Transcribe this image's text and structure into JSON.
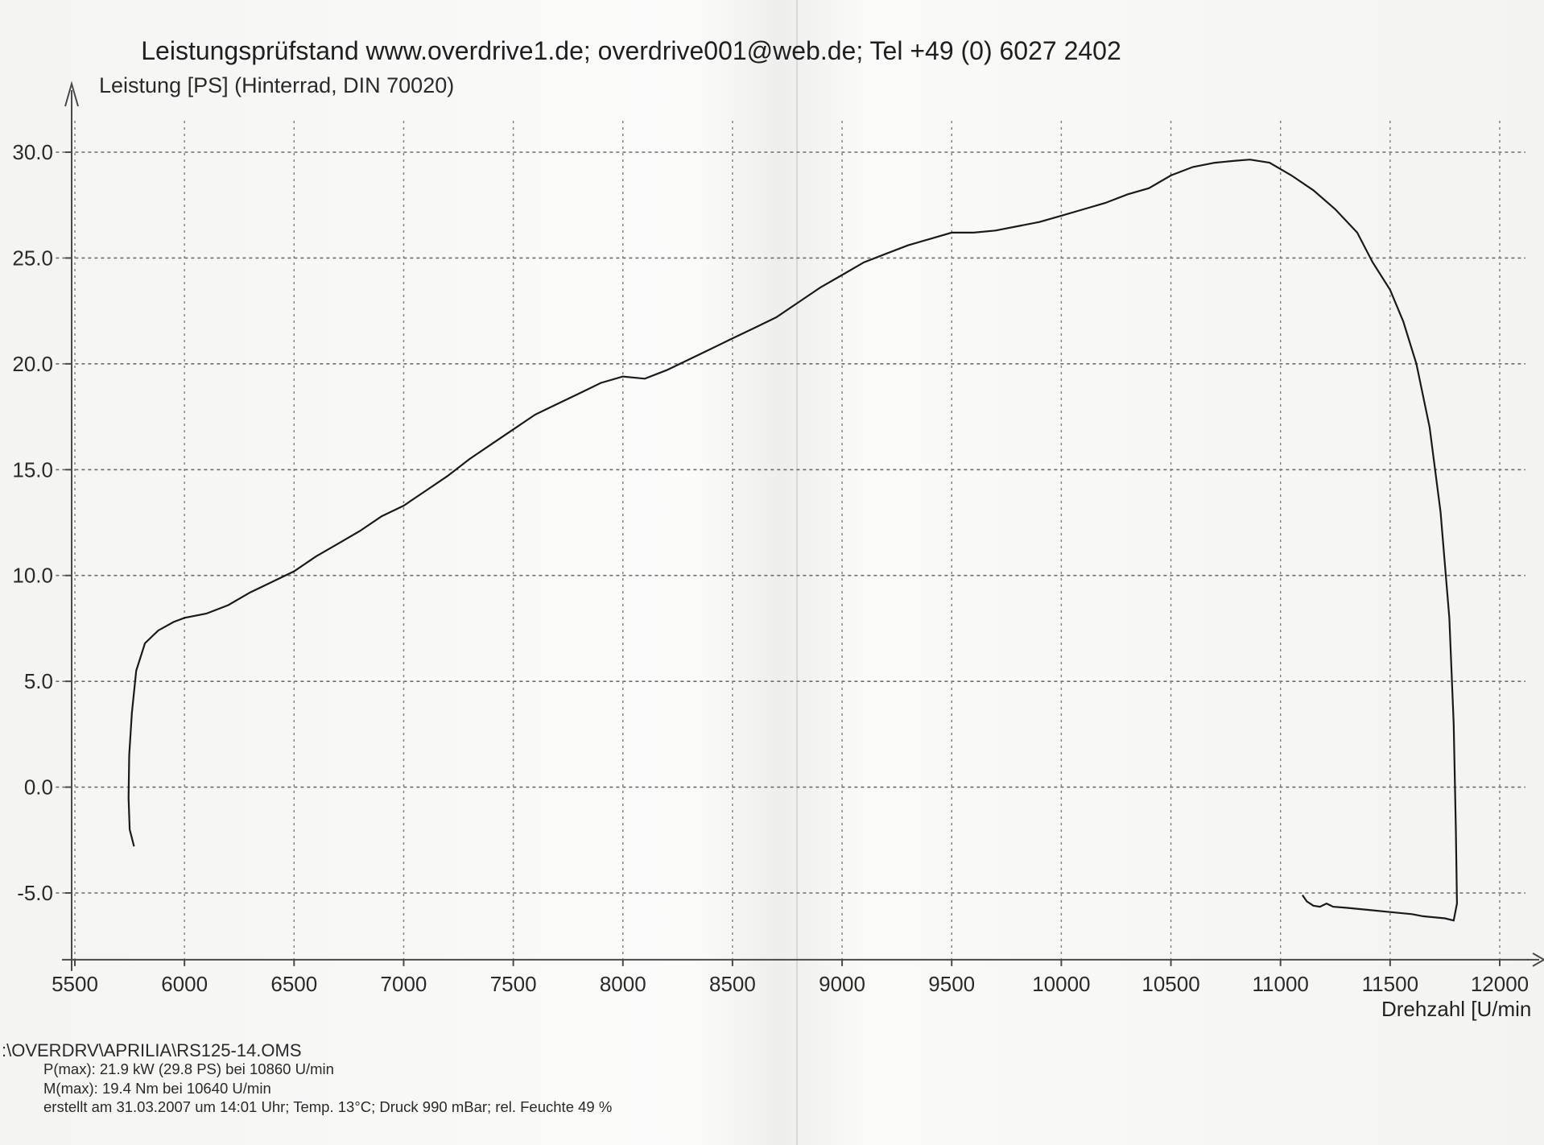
{
  "chart_data": {
    "type": "line",
    "title": "Leistungsprüfstand www.overdrive1.de; overdrive001@web.de; Tel +49 (0) 6027 2402",
    "ylabel": "Leistung [PS] (Hinterrad, DIN 70020)",
    "xlabel": "Drehzahl [U/min",
    "xlim": [
      5450,
      12000
    ],
    "ylim": [
      -8,
      32
    ],
    "x_ticks": [
      5500,
      6000,
      6500,
      7000,
      7500,
      8000,
      8500,
      9000,
      9500,
      10000,
      10500,
      11000,
      11500,
      12000
    ],
    "x_tick_labels": [
      "5500",
      "6000",
      "6500",
      "7000",
      "7500",
      "8000",
      "8500",
      "9000",
      "9500",
      "10000",
      "10500",
      "11000",
      "11500",
      "12000"
    ],
    "y_ticks": [
      -5,
      0,
      5,
      10,
      15,
      20,
      25,
      30
    ],
    "y_tick_labels": [
      "-5.0",
      "0.0",
      "5.0",
      "10.0",
      "15.0",
      "20.0",
      "25.0",
      "30.0"
    ],
    "grid": true,
    "series": [
      {
        "points": [
          [
            5770,
            -2.8
          ],
          [
            5750,
            -2.0
          ],
          [
            5745,
            -0.5
          ],
          [
            5748,
            1.5
          ],
          [
            5760,
            3.5
          ],
          [
            5780,
            5.5
          ],
          [
            5820,
            6.8
          ],
          [
            5880,
            7.4
          ],
          [
            5950,
            7.8
          ],
          [
            6000,
            8.0
          ],
          [
            6100,
            8.2
          ],
          [
            6200,
            8.6
          ],
          [
            6300,
            9.2
          ],
          [
            6400,
            9.7
          ],
          [
            6500,
            10.2
          ],
          [
            6600,
            10.9
          ],
          [
            6700,
            11.5
          ],
          [
            6800,
            12.1
          ],
          [
            6900,
            12.8
          ],
          [
            7000,
            13.3
          ],
          [
            7100,
            14.0
          ],
          [
            7200,
            14.7
          ],
          [
            7300,
            15.5
          ],
          [
            7400,
            16.2
          ],
          [
            7500,
            16.9
          ],
          [
            7600,
            17.6
          ],
          [
            7700,
            18.1
          ],
          [
            7800,
            18.6
          ],
          [
            7900,
            19.1
          ],
          [
            8000,
            19.4
          ],
          [
            8100,
            19.3
          ],
          [
            8200,
            19.7
          ],
          [
            8300,
            20.2
          ],
          [
            8400,
            20.7
          ],
          [
            8500,
            21.2
          ],
          [
            8600,
            21.7
          ],
          [
            8700,
            22.2
          ],
          [
            8800,
            22.9
          ],
          [
            8900,
            23.6
          ],
          [
            9000,
            24.2
          ],
          [
            9100,
            24.8
          ],
          [
            9200,
            25.2
          ],
          [
            9300,
            25.6
          ],
          [
            9400,
            25.9
          ],
          [
            9500,
            26.2
          ],
          [
            9600,
            26.2
          ],
          [
            9700,
            26.3
          ],
          [
            9800,
            26.5
          ],
          [
            9900,
            26.7
          ],
          [
            10000,
            27.0
          ],
          [
            10100,
            27.3
          ],
          [
            10200,
            27.6
          ],
          [
            10300,
            28.0
          ],
          [
            10400,
            28.3
          ],
          [
            10500,
            28.9
          ],
          [
            10600,
            29.3
          ],
          [
            10700,
            29.5
          ],
          [
            10800,
            29.6
          ],
          [
            10860,
            29.65
          ],
          [
            10950,
            29.5
          ],
          [
            11050,
            28.9
          ],
          [
            11150,
            28.2
          ],
          [
            11250,
            27.3
          ],
          [
            11350,
            26.2
          ],
          [
            11420,
            24.8
          ],
          [
            11500,
            23.5
          ],
          [
            11560,
            22.0
          ],
          [
            11620,
            20.0
          ],
          [
            11680,
            17.0
          ],
          [
            11730,
            13.0
          ],
          [
            11770,
            8.0
          ],
          [
            11790,
            3.0
          ],
          [
            11800,
            -2.0
          ],
          [
            11805,
            -5.5
          ],
          [
            11790,
            -6.3
          ],
          [
            11750,
            -6.2
          ],
          [
            11650,
            -6.1
          ],
          [
            11600,
            -6.0
          ],
          [
            11500,
            -5.9
          ],
          [
            11400,
            -5.8
          ],
          [
            11300,
            -5.7
          ],
          [
            11240,
            -5.65
          ],
          [
            11210,
            -5.5
          ],
          [
            11180,
            -5.65
          ],
          [
            11150,
            -5.6
          ],
          [
            11120,
            -5.4
          ],
          [
            11100,
            -5.1
          ]
        ]
      }
    ]
  },
  "info": {
    "file_path": ":\\OVERDRV\\APRILIA\\RS125-14.OMS",
    "pmax": "P(max): 21.9 kW (29.8 PS) bei 10860 U/min",
    "mmax": "M(max): 19.4 Nm bei 10640 U/min",
    "created": "erstellt am 31.03.2007 um 14:01 Uhr; Temp. 13°C; Druck 990 mBar; rel. Feuchte 49 %"
  },
  "icons": {
    "y_axis_arrow": "arrow-up-icon",
    "x_axis_arrow": "arrow-right-icon"
  }
}
